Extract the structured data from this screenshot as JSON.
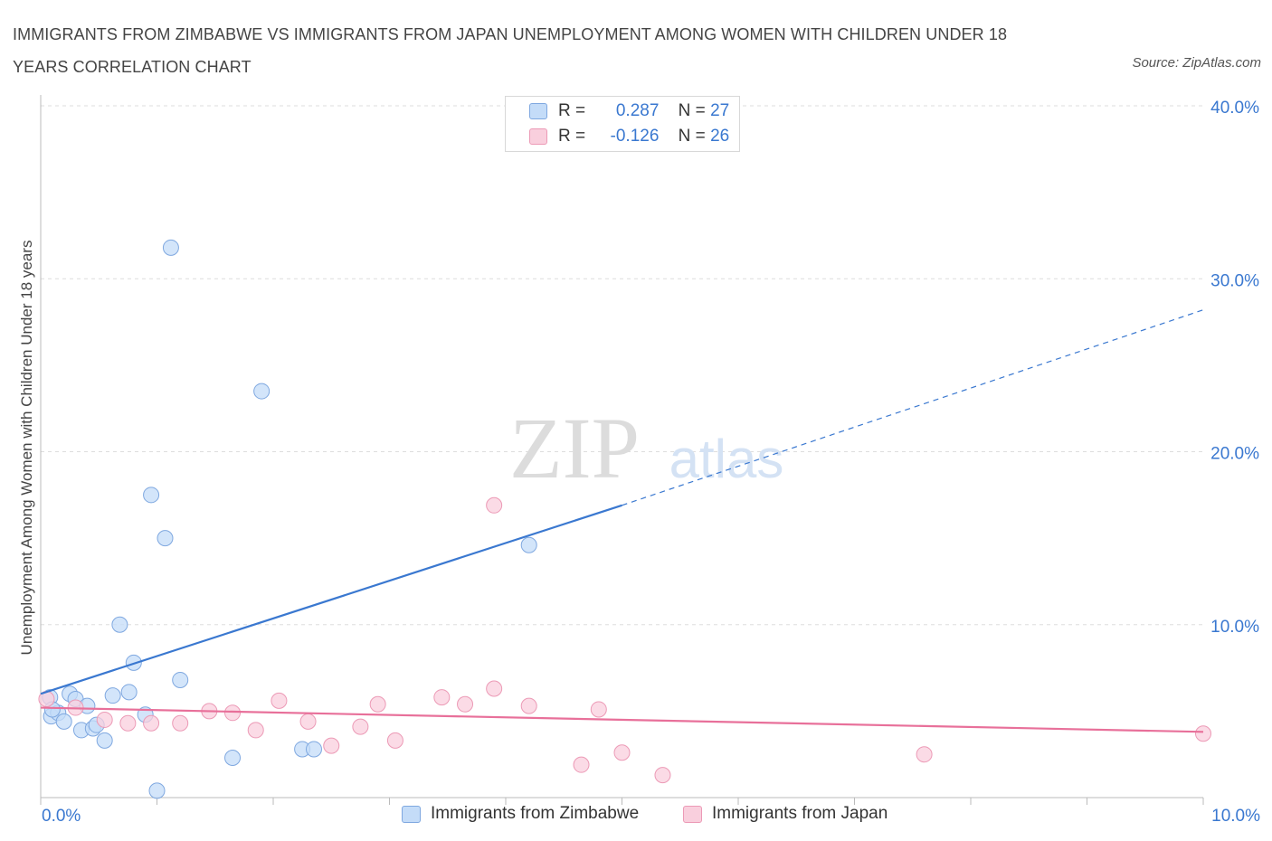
{
  "title": "IMMIGRANTS FROM ZIMBABWE VS IMMIGRANTS FROM JAPAN UNEMPLOYMENT AMONG WOMEN WITH CHILDREN UNDER 18 YEARS CORRELATION CHART",
  "source": "Source: ZipAtlas.com",
  "watermark": {
    "zip": "ZIP",
    "atlas": "atlas"
  },
  "legend_top": [
    {
      "r_label": "R =",
      "r_value": "0.287",
      "n_label": "N =",
      "n_value": "27"
    },
    {
      "r_label": "R =",
      "r_value": "-0.126",
      "n_label": "N =",
      "n_value": "26"
    }
  ],
  "legend_bottom": [
    "Immigrants from Zimbabwe",
    "Immigrants from Japan"
  ],
  "colors": {
    "blue": "#3a78d0",
    "blue_fill": "#c4dcf8",
    "pink": "#e8709a",
    "pink_fill": "#f9cfdd",
    "axis_text": "#3a78d0"
  },
  "chart_data": {
    "type": "scatter",
    "title": "IMMIGRANTS FROM ZIMBABWE VS IMMIGRANTS FROM JAPAN UNEMPLOYMENT AMONG WOMEN WITH CHILDREN UNDER 18 YEARS CORRELATION CHART",
    "xlabel": "",
    "ylabel": "Unemployment Among Women with Children Under 18 years",
    "xlim": [
      0,
      10
    ],
    "ylim": [
      0,
      40
    ],
    "x_tick_labels": [
      "0.0%",
      "10.0%"
    ],
    "y_tick_labels": [
      "10.0%",
      "20.0%",
      "30.0%",
      "40.0%"
    ],
    "y_ticks": [
      10,
      20,
      30,
      40
    ],
    "grid": true,
    "series": [
      {
        "name": "Immigrants from Zimbabwe",
        "color": "#3a78d0",
        "points": [
          [
            0.08,
            5.8
          ],
          [
            0.09,
            4.7
          ],
          [
            0.15,
            4.9
          ],
          [
            0.2,
            4.4
          ],
          [
            0.25,
            6.0
          ],
          [
            0.3,
            5.7
          ],
          [
            0.35,
            3.9
          ],
          [
            0.4,
            5.3
          ],
          [
            0.45,
            4.0
          ],
          [
            0.48,
            4.2
          ],
          [
            0.55,
            3.3
          ],
          [
            0.62,
            5.9
          ],
          [
            0.68,
            10.0
          ],
          [
            0.76,
            6.1
          ],
          [
            0.8,
            7.8
          ],
          [
            0.9,
            4.8
          ],
          [
            0.95,
            17.5
          ],
          [
            1.0,
            0.4
          ],
          [
            1.07,
            15.0
          ],
          [
            1.12,
            31.8
          ],
          [
            1.2,
            6.8
          ],
          [
            1.65,
            2.3
          ],
          [
            1.9,
            23.5
          ],
          [
            2.25,
            2.8
          ],
          [
            2.35,
            2.8
          ],
          [
            4.2,
            14.6
          ],
          [
            0.1,
            5.1
          ]
        ],
        "trend": {
          "x_solid": [
            0.0,
            5.0
          ],
          "y_solid": [
            6.0,
            16.9
          ],
          "x_dashed": [
            5.0,
            10.0
          ],
          "y_dashed": [
            16.9,
            28.2
          ]
        }
      },
      {
        "name": "Immigrants from Japan",
        "color": "#e8709a",
        "points": [
          [
            0.05,
            5.7
          ],
          [
            0.3,
            5.2
          ],
          [
            0.55,
            4.5
          ],
          [
            0.75,
            4.3
          ],
          [
            0.95,
            4.3
          ],
          [
            1.2,
            4.3
          ],
          [
            1.45,
            5.0
          ],
          [
            1.65,
            4.9
          ],
          [
            1.85,
            3.9
          ],
          [
            2.05,
            5.6
          ],
          [
            2.3,
            4.4
          ],
          [
            2.5,
            3.0
          ],
          [
            2.75,
            4.1
          ],
          [
            2.9,
            5.4
          ],
          [
            3.05,
            3.3
          ],
          [
            3.45,
            5.8
          ],
          [
            3.65,
            5.4
          ],
          [
            3.9,
            6.3
          ],
          [
            3.9,
            16.9
          ],
          [
            4.2,
            5.3
          ],
          [
            4.65,
            1.9
          ],
          [
            4.8,
            5.1
          ],
          [
            5.0,
            2.6
          ],
          [
            5.35,
            1.3
          ],
          [
            7.6,
            2.5
          ],
          [
            10.0,
            3.7
          ]
        ],
        "trend": {
          "x_solid": [
            0.0,
            10.0
          ],
          "y_solid": [
            5.2,
            3.8
          ]
        }
      }
    ]
  }
}
